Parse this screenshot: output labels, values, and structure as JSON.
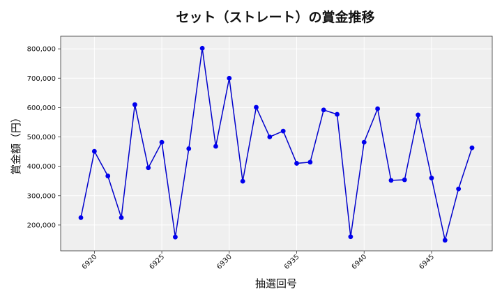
{
  "chart_data": {
    "type": "line",
    "title": "セット（ストレート）の賞金推移",
    "xlabel": "抽選回号",
    "ylabel": "賞金額（円）",
    "xlim": [
      6917.5,
      6949.5
    ],
    "ylim": [
      112000,
      843000
    ],
    "x_ticks": [
      6920,
      6925,
      6930,
      6935,
      6940,
      6945
    ],
    "y_ticks": [
      200000,
      300000,
      400000,
      500000,
      600000,
      700000,
      800000
    ],
    "y_tick_labels": [
      "200,000",
      "300,000",
      "400,000",
      "500,000",
      "600,000",
      "700,000",
      "800,000"
    ],
    "grid": true,
    "line_color": "#0000cc",
    "marker_color": "#0000ee",
    "plot_background": "#efefef",
    "series": [
      {
        "x": [
          6919,
          6920,
          6921,
          6922,
          6923,
          6924,
          6925,
          6926,
          6927,
          6928,
          6929,
          6930,
          6931,
          6932,
          6933,
          6934,
          6935,
          6936,
          6937,
          6938,
          6939,
          6940,
          6941,
          6942,
          6943,
          6944,
          6945,
          6946,
          6947,
          6948
        ],
        "values": [
          225000,
          451000,
          367000,
          225000,
          610000,
          395000,
          482000,
          159000,
          460000,
          802000,
          468000,
          700000,
          349000,
          601000,
          500000,
          520000,
          410000,
          414000,
          592000,
          577000,
          160000,
          482000,
          596000,
          352000,
          354000,
          575000,
          360000,
          148000,
          323000,
          463000
        ]
      }
    ]
  }
}
